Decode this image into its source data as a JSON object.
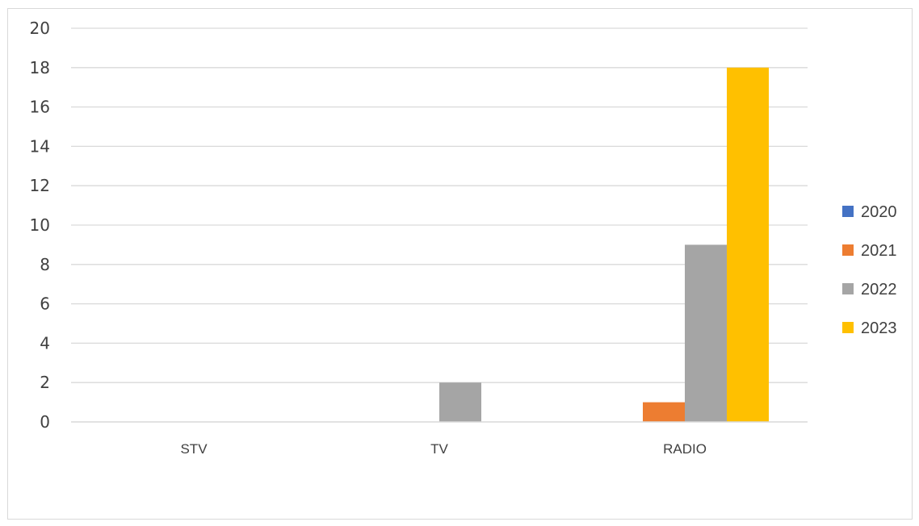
{
  "chart_data": {
    "type": "bar",
    "categories": [
      "STV",
      "TV",
      "RADIO"
    ],
    "series": [
      {
        "name": "2020",
        "values": [
          0,
          0,
          0
        ],
        "color": "#4472c4"
      },
      {
        "name": "2021",
        "values": [
          0,
          0,
          1
        ],
        "color": "#ed7d31"
      },
      {
        "name": "2022",
        "values": [
          0,
          2,
          9
        ],
        "color": "#a5a5a5"
      },
      {
        "name": "2023",
        "values": [
          0,
          0,
          18
        ],
        "color": "#ffc000"
      }
    ],
    "ylim": [
      0,
      20
    ],
    "yticks": [
      0,
      2,
      4,
      6,
      8,
      10,
      12,
      14,
      16,
      18,
      20
    ],
    "grid": true,
    "gridline_color": "#d9d9d9",
    "legend_position": "right",
    "title": "",
    "xlabel": "",
    "ylabel": ""
  }
}
